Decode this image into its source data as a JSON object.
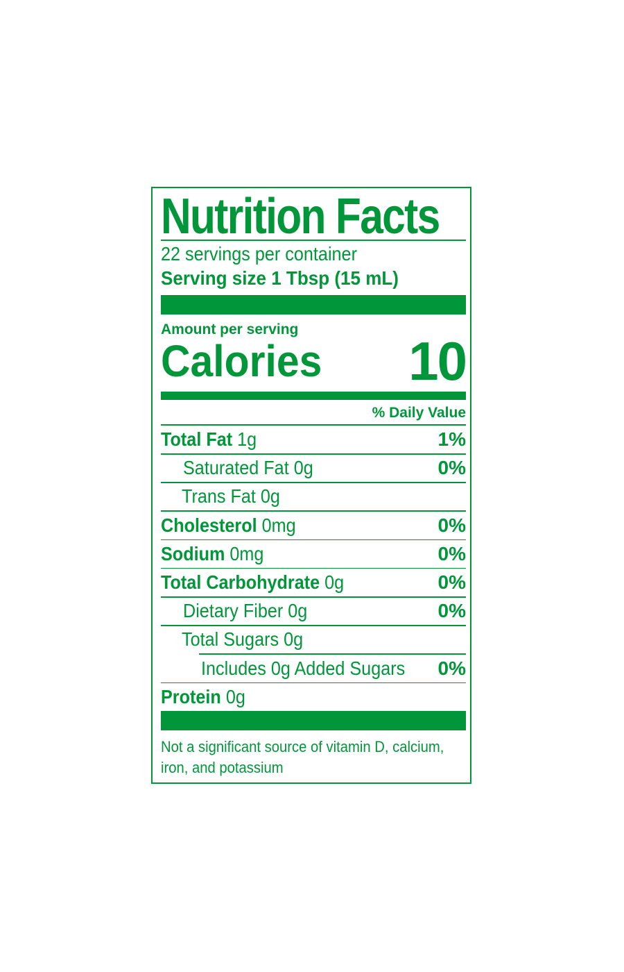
{
  "colors": {
    "label_green": "#009639",
    "background": "#ffffff"
  },
  "title": "Nutrition Facts",
  "servings_per_container": "22 servings per container",
  "serving_size": "Serving size 1 Tbsp (15 mL)",
  "amount_per_serving": "Amount per serving",
  "calories": {
    "label": "Calories",
    "value": "10"
  },
  "daily_value_header": "% Daily Value",
  "nutrients": [
    {
      "name": "Total Fat",
      "amount": "1g",
      "dv": "1%"
    },
    {
      "name": "Saturated Fat",
      "amount": "0g",
      "dv": "0%"
    },
    {
      "name": "Trans Fat",
      "amount": "0g",
      "dv": ""
    },
    {
      "name": "Cholesterol",
      "amount": "0mg",
      "dv": "0%"
    },
    {
      "name": "Sodium",
      "amount": "0mg",
      "dv": "0%"
    },
    {
      "name": "Total Carbohydrate",
      "amount": "0g",
      "dv": "0%"
    },
    {
      "name": "Dietary Fiber",
      "amount": "0g",
      "dv": "0%"
    },
    {
      "name": "Total Sugars",
      "amount": "0g",
      "dv": ""
    },
    {
      "name": "Includes 0g Added Sugars",
      "amount": "",
      "dv": "0%"
    },
    {
      "name": "Protein",
      "amount": "0g",
      "dv": ""
    }
  ],
  "footnote_line1": "Not a significant source of vitamin D, calcium,",
  "footnote_line2": "iron, and potassium"
}
